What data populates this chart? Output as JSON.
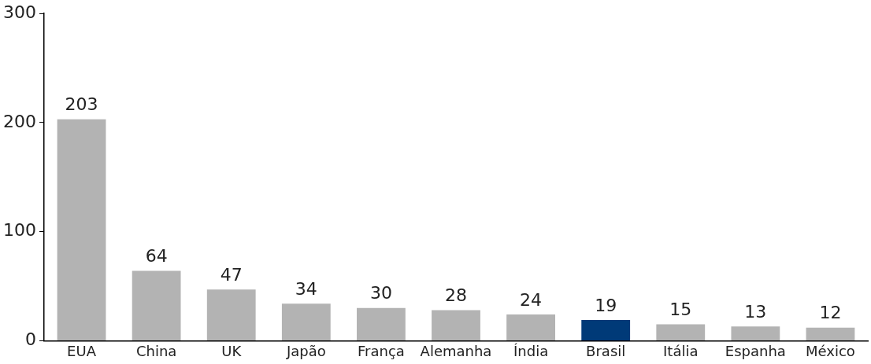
{
  "chart_data": {
    "type": "bar",
    "categories": [
      "EUA",
      "China",
      "UK",
      "Japão",
      "França",
      "Alemanha",
      "Índia",
      "Brasil",
      "Itália",
      "Espanha",
      "México"
    ],
    "values": [
      203,
      64,
      47,
      34,
      30,
      28,
      24,
      19,
      15,
      13,
      12
    ],
    "colors": [
      "#b3b3b3",
      "#b3b3b3",
      "#b3b3b3",
      "#b3b3b3",
      "#b3b3b3",
      "#b3b3b3",
      "#b3b3b3",
      "#003a78",
      "#b3b3b3",
      "#b3b3b3",
      "#b3b3b3"
    ],
    "ylim": [
      0,
      300
    ],
    "yticks": [
      0,
      100,
      200,
      300
    ],
    "grid": false,
    "legend": false,
    "data_labels": true
  }
}
